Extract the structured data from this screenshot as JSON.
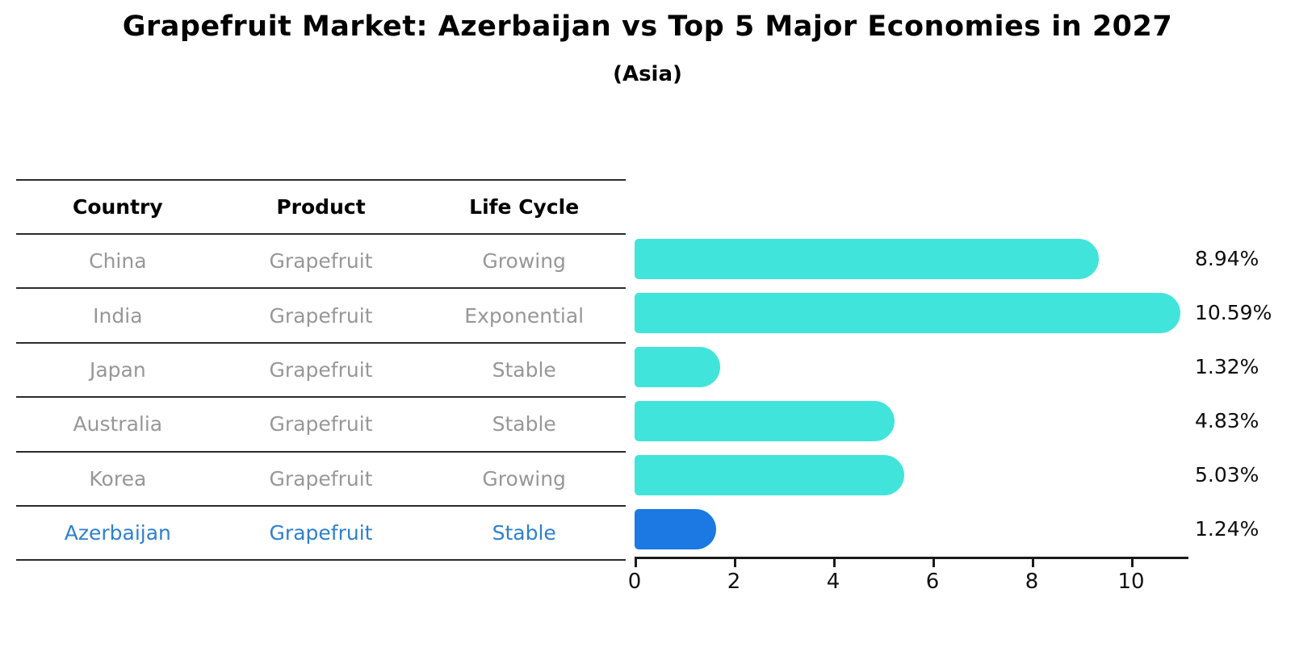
{
  "title": "Grapefruit Market: Azerbaijan vs Top 5 Major Economies in 2027",
  "subtitle": "(Asia)",
  "table": {
    "headers": [
      "Country",
      "Product",
      "Life Cycle"
    ],
    "rows": [
      {
        "country": "China",
        "product": "Grapefruit",
        "life_cycle": "Growing",
        "highlight": false
      },
      {
        "country": "India",
        "product": "Grapefruit",
        "life_cycle": "Exponential",
        "highlight": false
      },
      {
        "country": "Japan",
        "product": "Grapefruit",
        "life_cycle": "Stable",
        "highlight": false
      },
      {
        "country": "Australia",
        "product": "Grapefruit",
        "life_cycle": "Stable",
        "highlight": false
      },
      {
        "country": "Korea",
        "product": "Grapefruit",
        "life_cycle": "Growing",
        "highlight": false
      },
      {
        "country": "Azerbaijan",
        "product": "Grapefruit",
        "life_cycle": "Stable",
        "highlight": true
      }
    ]
  },
  "chart_data": {
    "type": "bar",
    "orientation": "horizontal",
    "title": "Grapefruit Market: Azerbaijan vs Top 5 Major Economies in 2027",
    "subtitle": "(Asia)",
    "categories": [
      "China",
      "India",
      "Japan",
      "Australia",
      "Korea",
      "Azerbaijan"
    ],
    "values": [
      8.94,
      10.59,
      1.32,
      4.83,
      5.03,
      1.24
    ],
    "value_labels": [
      "8.94%",
      "10.59%",
      "1.32%",
      "4.83%",
      "5.03%",
      "1.24%"
    ],
    "xticks": [
      "0",
      "2",
      "4",
      "6",
      "8",
      "10"
    ],
    "xtick_values": [
      0,
      2,
      4,
      6,
      8,
      10
    ],
    "xlim": [
      0,
      11.15
    ],
    "grid": false,
    "legend_position": "none",
    "bar_color": "#41e4db",
    "highlight_color": "#1c78e2",
    "highlight_index": 5,
    "highlight_edge_style": "dotted"
  },
  "colors": {
    "title_text": "#000000",
    "table_text": "#979797",
    "highlight_text": "#2e80ce",
    "table_line": "#2b2b2b",
    "axis": "#1a1a1a",
    "background": "#ffffff"
  }
}
